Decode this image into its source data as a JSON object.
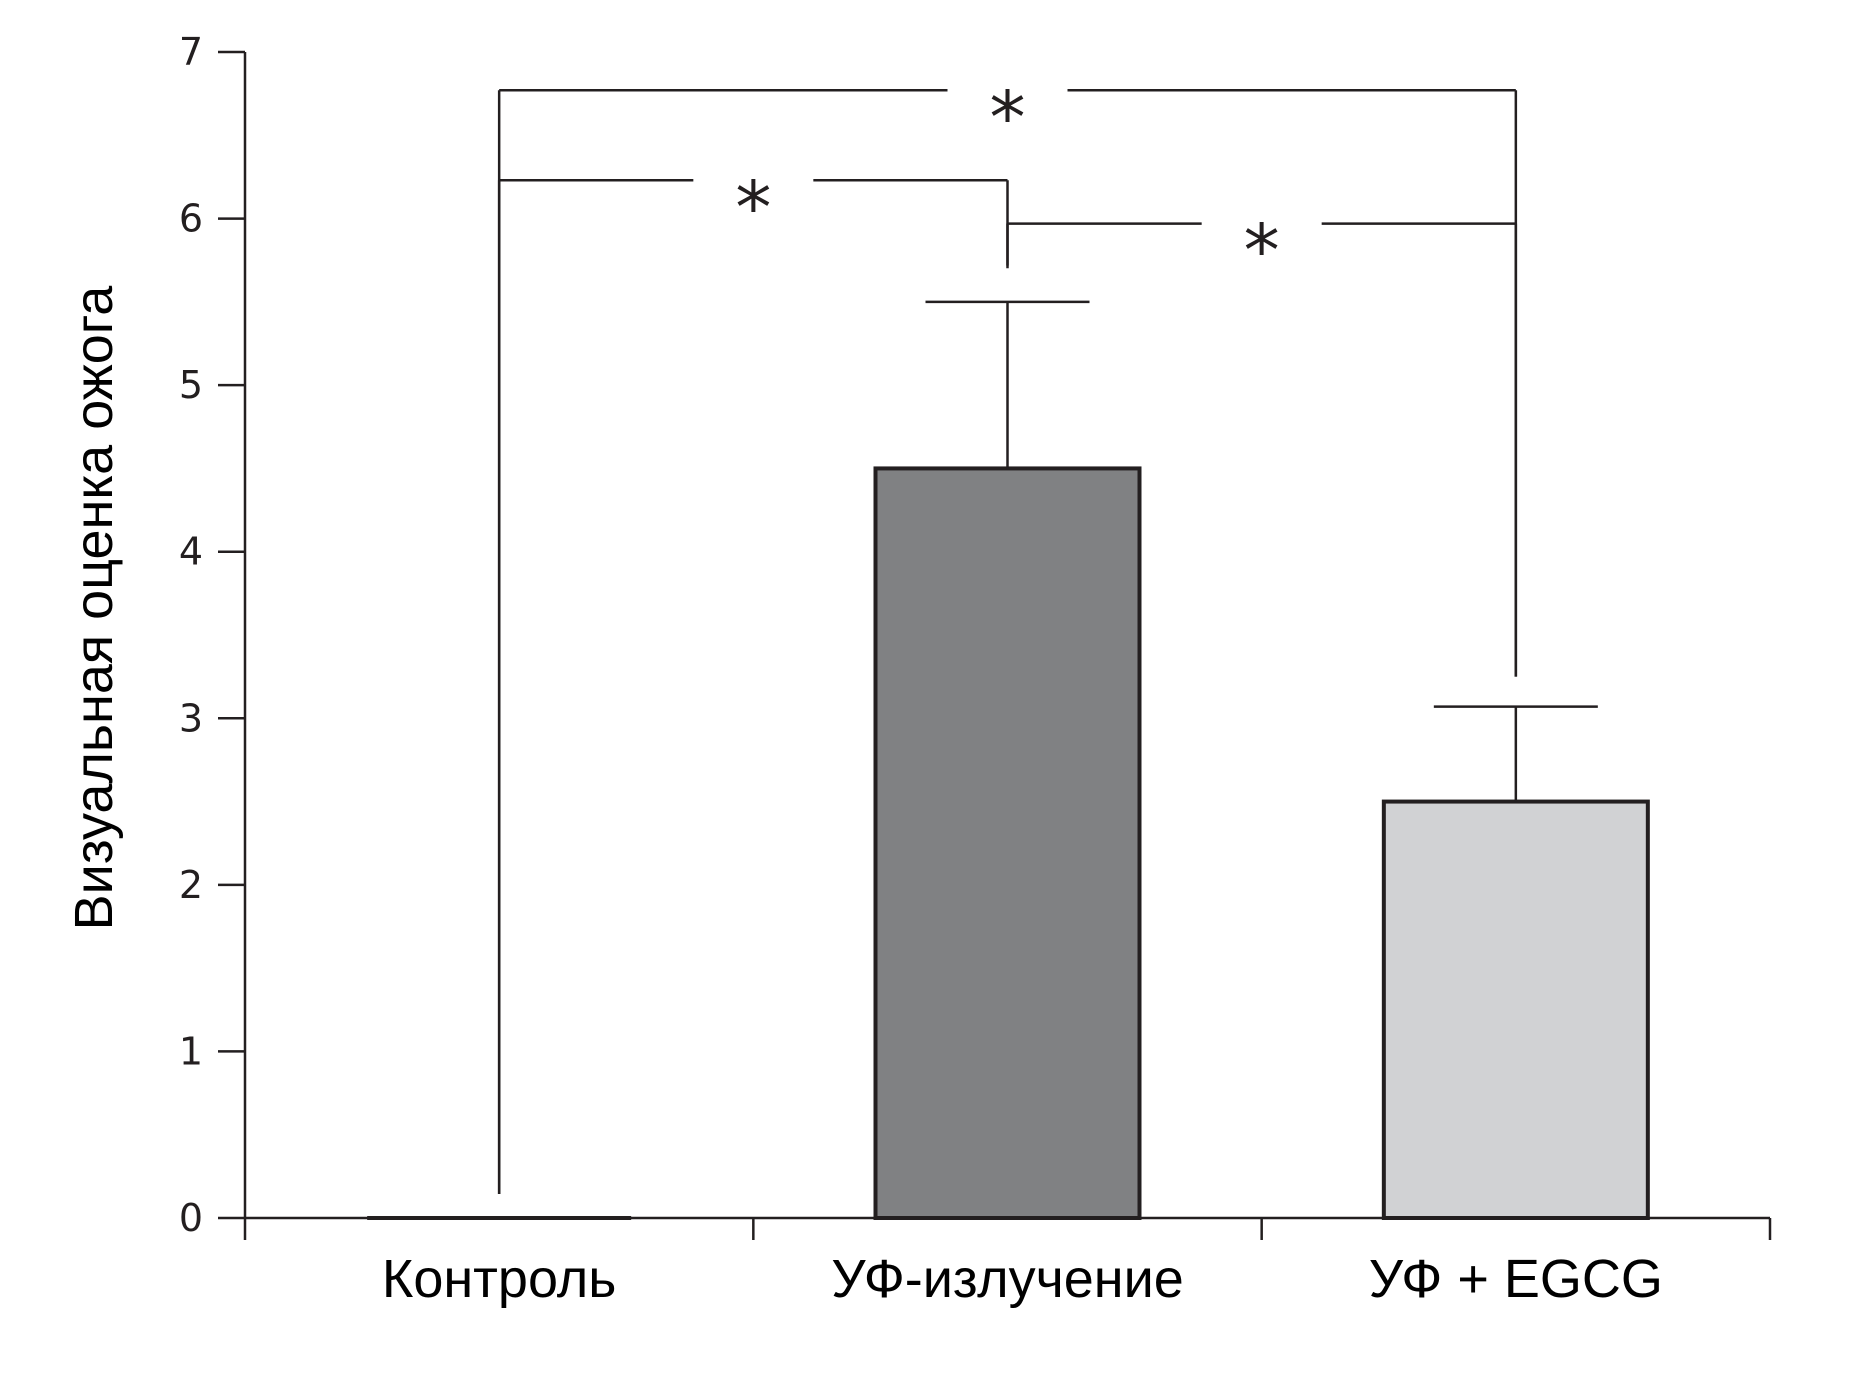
{
  "chart_data": {
    "type": "bar",
    "categories": [
      "Контроль",
      "УФ-излучение",
      "УФ + EGCG"
    ],
    "values": [
      0,
      4.5,
      2.5
    ],
    "errors": [
      0,
      1.0,
      0.57
    ],
    "colors": [
      "#ffffff",
      "#808183",
      "#d1d2d4"
    ],
    "ylabel": "Визуальная оценка ожога",
    "ylim": [
      0,
      7
    ],
    "yticks": [
      0,
      1,
      2,
      3,
      4,
      5,
      6,
      7
    ],
    "significance": [
      {
        "from": 0,
        "to": 2,
        "y": 6.77,
        "label": "*"
      },
      {
        "from": 0,
        "to": 1,
        "y": 6.23,
        "label": "*"
      },
      {
        "from": 1,
        "to": 2,
        "y": 5.97,
        "label": "*"
      }
    ]
  }
}
